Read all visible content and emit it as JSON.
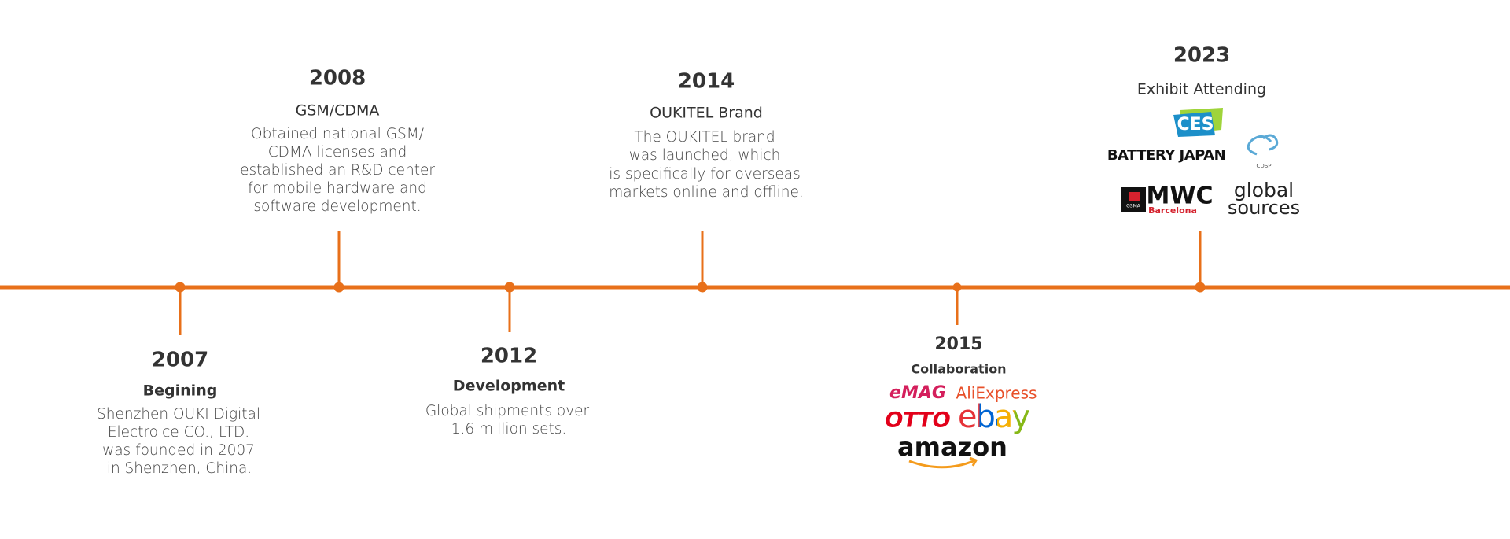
{
  "milestones": [
    {
      "year": "2007",
      "title": "Begining",
      "description": [
        "Shenzhen OUKI Digital",
        "Electroice CO., LTD.",
        "was founded in 2007",
        "in Shenzhen, China."
      ]
    },
    {
      "year": "2008",
      "title": "GSM/CDMA",
      "description": [
        "Obtained national GSM/",
        "CDMA licenses and",
        "established an R&D center",
        "for mobile hardware and",
        "software development."
      ]
    },
    {
      "year": "2012",
      "title": "Development",
      "description": [
        "Global shipments over",
        "1.6 million sets."
      ]
    },
    {
      "year": "2014",
      "title": "OUKITEL Brand",
      "description": [
        "The OUKITEL brand",
        "was launched, which",
        "is specifically for overseas",
        "markets online and offline."
      ]
    },
    {
      "year": "2015",
      "title": "Collaboration",
      "logos": [
        "eMAG",
        "AliExpress",
        "OTTO",
        "ebay",
        "amazon"
      ]
    },
    {
      "year": "2023",
      "title": "Exhibit Attending",
      "logos": [
        "CES",
        "BATTERY JAPAN",
        "CDSP",
        "GSMA",
        "MWC",
        "Barcelona",
        "global",
        "sources"
      ]
    }
  ]
}
